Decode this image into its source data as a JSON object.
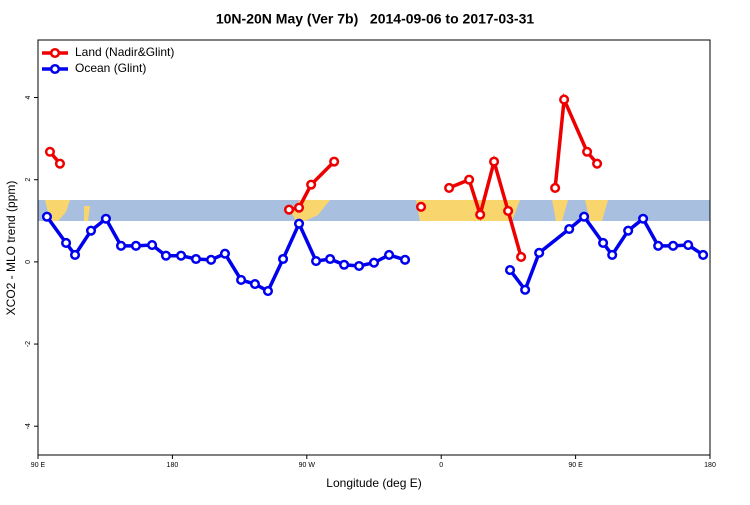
{
  "chart_data": {
    "type": "line",
    "title": "10N-20N May (Ver 7b)   2014-09-06 to 2017-03-31",
    "x_label": "Longitude (deg E)",
    "y_label": "XCO2 - MLO trend (ppm)",
    "xlim": [
      90,
      540
    ],
    "xticks": [
      {
        "value": 90,
        "label": "90 E"
      },
      180,
      {
        "value": 270,
        "label": "90 W"
      },
      {
        "value": 360,
        "label": "0"
      },
      {
        "value": 450,
        "label": "90 E"
      },
      {
        "value": 540,
        "label": "180"
      }
    ],
    "ylim": [
      -4.7,
      5.4
    ],
    "yticks": [
      -4,
      -2,
      0,
      2,
      4
    ],
    "legend": "top-left",
    "series": [
      {
        "name": "Land (Nadir&Glint)",
        "color": "#ee0000",
        "x": [
          98,
          104.7,
          null,
          258.1,
          264.8,
          272.9,
          288.3,
          null,
          346.5,
          null,
          365.3,
          378.7,
          386.1,
          395.4,
          404.8,
          413.5,
          null,
          436.3,
          442.3,
          457.7,
          464.4
        ],
        "values": [
          2.68,
          2.39,
          null,
          1.27,
          1.32,
          1.88,
          2.44,
          null,
          1.34,
          null,
          1.8,
          2.0,
          1.15,
          2.44,
          1.24,
          0.12,
          null,
          1.8,
          3.95,
          2.68,
          2.39
        ]
      },
      {
        "name": "Ocean (Glint)",
        "color": "#0000ee",
        "x": [
          96,
          108.8,
          114.8,
          125.5,
          135.5,
          145.6,
          155.6,
          166.4,
          175.7,
          185.8,
          195.8,
          205.9,
          215.2,
          226,
          235.3,
          244,
          254.1,
          264.8,
          276.2,
          285.6,
          295,
          305,
          315,
          325.1,
          335.8,
          null,
          406.1,
          416.2,
          425.6,
          445.7,
          455.7,
          468.4,
          474.5,
          485.2,
          495.2,
          505.3,
          515.3,
          525.4,
          535.4
        ],
        "values": [
          1.1,
          0.46,
          0.17,
          0.76,
          1.05,
          0.39,
          0.39,
          0.41,
          0.15,
          0.15,
          0.07,
          0.05,
          0.2,
          -0.44,
          -0.54,
          -0.71,
          0.07,
          0.93,
          0.02,
          0.07,
          -0.07,
          -0.1,
          -0.02,
          0.17,
          0.05,
          null,
          -0.2,
          -0.68,
          0.22,
          0.8,
          1.1,
          0.46,
          0.17,
          0.76,
          1.05,
          0.39,
          0.39,
          0.41,
          0.17
        ]
      }
    ]
  }
}
